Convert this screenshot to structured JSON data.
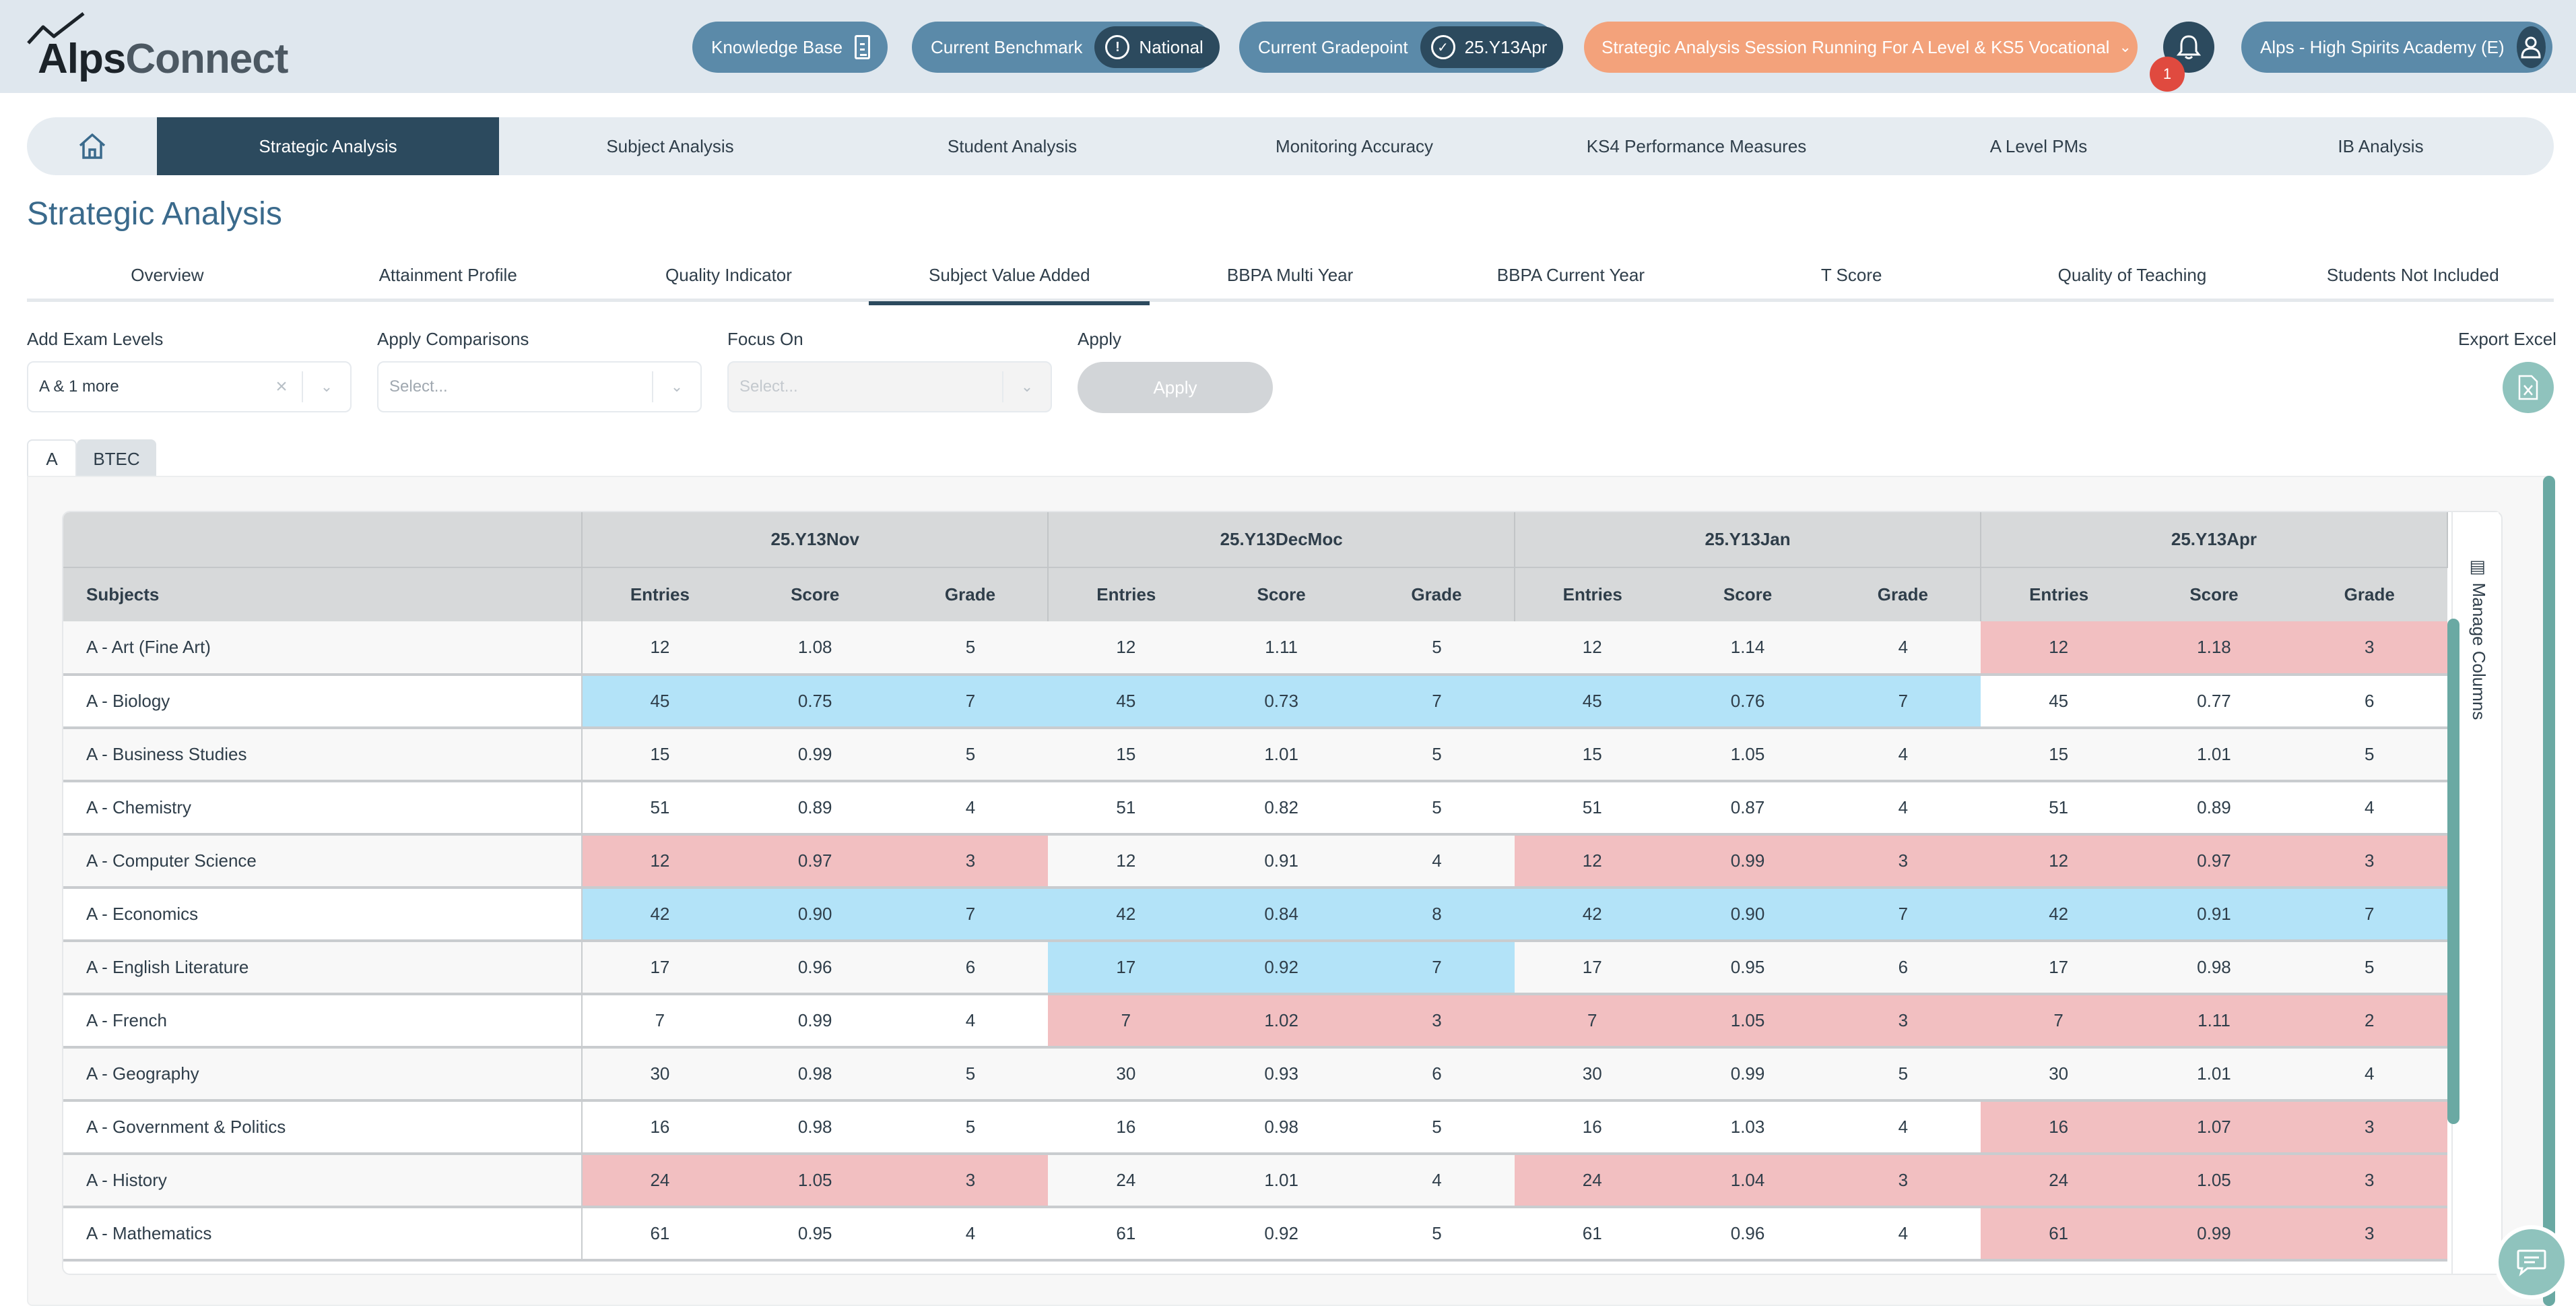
{
  "app": {
    "logo_text_primary": "Alps",
    "logo_text_secondary": "Connect"
  },
  "header": {
    "knowledge_base": "Knowledge Base",
    "benchmark_label": "Current Benchmark",
    "benchmark_value": "National",
    "gradepoint_label": "Current Gradepoint",
    "gradepoint_value": "25.Y13Apr",
    "session_text": "Strategic Analysis Session Running For A Level & KS5 Vocational",
    "notification_count": "1",
    "school": "Alps - High Spirits Academy (E)"
  },
  "main_nav": {
    "items": [
      {
        "label": "Strategic Analysis"
      },
      {
        "label": "Subject Analysis"
      },
      {
        "label": "Student Analysis"
      },
      {
        "label": "Monitoring Accuracy"
      },
      {
        "label": "KS4 Performance Measures"
      },
      {
        "label": "A Level PMs"
      },
      {
        "label": "IB Analysis"
      }
    ]
  },
  "page_title": "Strategic Analysis",
  "sub_tabs": [
    {
      "label": "Overview"
    },
    {
      "label": "Attainment Profile"
    },
    {
      "label": "Quality Indicator"
    },
    {
      "label": "Subject Value Added"
    },
    {
      "label": "BBPA Multi Year"
    },
    {
      "label": "BBPA Current Year"
    },
    {
      "label": "T Score"
    },
    {
      "label": "Quality of Teaching"
    },
    {
      "label": "Students Not Included"
    }
  ],
  "filters": {
    "exam_levels_label": "Add Exam Levels",
    "exam_levels_value": "A & 1 more",
    "comparisons_label": "Apply Comparisons",
    "comparisons_placeholder": "Select...",
    "focus_label": "Focus On",
    "focus_placeholder": "Select...",
    "apply_label": "Apply",
    "apply_button": "Apply",
    "export_label": "Export Excel"
  },
  "level_tabs": [
    {
      "label": "A"
    },
    {
      "label": "BTEC"
    }
  ],
  "table": {
    "subjects_header": "Subjects",
    "groups": [
      "25.Y13Nov",
      "25.Y13DecMoc",
      "25.Y13Jan",
      "25.Y13Apr"
    ],
    "columns": [
      "Entries",
      "Score",
      "Grade"
    ],
    "manage_columns": "Manage Columns",
    "rows": [
      {
        "subject": "A - Art (Fine Art)",
        "cells": [
          [
            "12",
            "1.08",
            "5"
          ],
          [
            "12",
            "1.11",
            "5"
          ],
          [
            "12",
            "1.14",
            "4"
          ],
          [
            "12",
            "1.18",
            "3"
          ]
        ],
        "hl": [
          "",
          "",
          "",
          "red"
        ]
      },
      {
        "subject": "A - Biology",
        "cells": [
          [
            "45",
            "0.75",
            "7"
          ],
          [
            "45",
            "0.73",
            "7"
          ],
          [
            "45",
            "0.76",
            "7"
          ],
          [
            "45",
            "0.77",
            "6"
          ]
        ],
        "hl": [
          "blue",
          "blue",
          "blue",
          ""
        ]
      },
      {
        "subject": "A - Business Studies",
        "cells": [
          [
            "15",
            "0.99",
            "5"
          ],
          [
            "15",
            "1.01",
            "5"
          ],
          [
            "15",
            "1.05",
            "4"
          ],
          [
            "15",
            "1.01",
            "5"
          ]
        ],
        "hl": [
          "",
          "",
          "",
          ""
        ]
      },
      {
        "subject": "A - Chemistry",
        "cells": [
          [
            "51",
            "0.89",
            "4"
          ],
          [
            "51",
            "0.82",
            "5"
          ],
          [
            "51",
            "0.87",
            "4"
          ],
          [
            "51",
            "0.89",
            "4"
          ]
        ],
        "hl": [
          "",
          "",
          "",
          ""
        ]
      },
      {
        "subject": "A - Computer Science",
        "cells": [
          [
            "12",
            "0.97",
            "3"
          ],
          [
            "12",
            "0.91",
            "4"
          ],
          [
            "12",
            "0.99",
            "3"
          ],
          [
            "12",
            "0.97",
            "3"
          ]
        ],
        "hl": [
          "red",
          "",
          "red",
          "red"
        ]
      },
      {
        "subject": "A - Economics",
        "cells": [
          [
            "42",
            "0.90",
            "7"
          ],
          [
            "42",
            "0.84",
            "8"
          ],
          [
            "42",
            "0.90",
            "7"
          ],
          [
            "42",
            "0.91",
            "7"
          ]
        ],
        "hl": [
          "blue",
          "blue",
          "blue",
          "blue"
        ]
      },
      {
        "subject": "A - English Literature",
        "cells": [
          [
            "17",
            "0.96",
            "6"
          ],
          [
            "17",
            "0.92",
            "7"
          ],
          [
            "17",
            "0.95",
            "6"
          ],
          [
            "17",
            "0.98",
            "5"
          ]
        ],
        "hl": [
          "",
          "blue",
          "",
          ""
        ]
      },
      {
        "subject": "A - French",
        "cells": [
          [
            "7",
            "0.99",
            "4"
          ],
          [
            "7",
            "1.02",
            "3"
          ],
          [
            "7",
            "1.05",
            "3"
          ],
          [
            "7",
            "1.11",
            "2"
          ]
        ],
        "hl": [
          "",
          "red",
          "red",
          "red"
        ]
      },
      {
        "subject": "A - Geography",
        "cells": [
          [
            "30",
            "0.98",
            "5"
          ],
          [
            "30",
            "0.93",
            "6"
          ],
          [
            "30",
            "0.99",
            "5"
          ],
          [
            "30",
            "1.01",
            "4"
          ]
        ],
        "hl": [
          "",
          "",
          "",
          ""
        ]
      },
      {
        "subject": "A - Government & Politics",
        "cells": [
          [
            "16",
            "0.98",
            "5"
          ],
          [
            "16",
            "0.98",
            "5"
          ],
          [
            "16",
            "1.03",
            "4"
          ],
          [
            "16",
            "1.07",
            "3"
          ]
        ],
        "hl": [
          "",
          "",
          "",
          "red"
        ]
      },
      {
        "subject": "A - History",
        "cells": [
          [
            "24",
            "1.05",
            "3"
          ],
          [
            "24",
            "1.01",
            "4"
          ],
          [
            "24",
            "1.04",
            "3"
          ],
          [
            "24",
            "1.05",
            "3"
          ]
        ],
        "hl": [
          "red",
          "",
          "red",
          "red"
        ]
      },
      {
        "subject": "A - Mathematics",
        "cells": [
          [
            "61",
            "0.95",
            "4"
          ],
          [
            "61",
            "0.92",
            "5"
          ],
          [
            "61",
            "0.96",
            "4"
          ],
          [
            "61",
            "0.99",
            "3"
          ]
        ],
        "hl": [
          "",
          "",
          "",
          "red"
        ]
      }
    ]
  },
  "colors": {
    "accent_dark": "#2c4a5e",
    "accent_mid": "#5b8aa9",
    "session_orange": "#f3a27b",
    "highlight_red": "#f2bfc1",
    "highlight_blue": "#b3e3f8",
    "teal": "#8fc3bd"
  },
  "icons": {
    "home": "home-icon",
    "bell": "bell-icon",
    "user": "user-icon",
    "knowledge_base": "document-icon",
    "benchmark": "exclamation-circle-icon",
    "gradepoint": "check-circle-icon",
    "export": "excel-file-icon",
    "chat": "chat-icon"
  }
}
